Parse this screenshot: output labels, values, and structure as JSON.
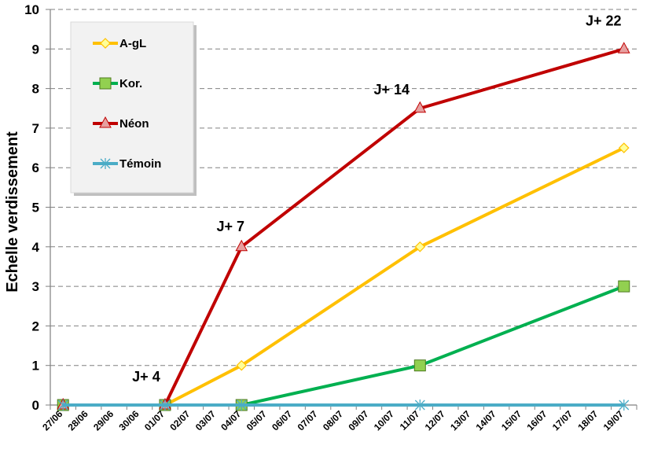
{
  "chart_data": {
    "type": "line",
    "ylabel": "Echelle verdissement",
    "xlabel": "",
    "ylim": [
      0,
      10
    ],
    "yticks": [
      "0",
      "1",
      "2",
      "3",
      "4",
      "5",
      "6",
      "7",
      "8",
      "9",
      "10"
    ],
    "grid": "horizontal dashed",
    "legend_position": "top-left",
    "categories": [
      "27/06",
      "28/06",
      "29/06",
      "30/06",
      "01/07",
      "02/07",
      "03/07",
      "04/07",
      "05/07",
      "06/07",
      "07/07",
      "08/07",
      "09/07",
      "10/07",
      "11/07",
      "12/07",
      "13/07",
      "14/07",
      "15/07",
      "16/07",
      "17/07",
      "18/07",
      "19/07"
    ],
    "series": [
      {
        "name": "A-gL",
        "color": "#FFC000",
        "marker": "diamond",
        "marker_fill": "#FFFF99",
        "points": [
          {
            "x": "27/06",
            "y": 0
          },
          {
            "x": "01/07",
            "y": 0
          },
          {
            "x": "04/07",
            "y": 1
          },
          {
            "x": "11/07",
            "y": 4
          },
          {
            "x": "19/07",
            "y": 6.5
          }
        ]
      },
      {
        "name": "Kor.",
        "color": "#00B050",
        "marker": "square",
        "marker_fill": "#92D050",
        "points": [
          {
            "x": "27/06",
            "y": 0
          },
          {
            "x": "01/07",
            "y": 0
          },
          {
            "x": "04/07",
            "y": 0
          },
          {
            "x": "11/07",
            "y": 1
          },
          {
            "x": "19/07",
            "y": 3
          }
        ]
      },
      {
        "name": "Néon",
        "color": "#C00000",
        "marker": "triangle",
        "marker_fill": "#E6A0A0",
        "points": [
          {
            "x": "27/06",
            "y": 0
          },
          {
            "x": "01/07",
            "y": 0
          },
          {
            "x": "04/07",
            "y": 4
          },
          {
            "x": "11/07",
            "y": 7.5
          },
          {
            "x": "19/07",
            "y": 9
          }
        ]
      },
      {
        "name": "Témoin",
        "color": "#4BACC6",
        "marker": "asterisk",
        "marker_fill": "#4BACC6",
        "points": [
          {
            "x": "27/06",
            "y": 0
          },
          {
            "x": "01/07",
            "y": 0
          },
          {
            "x": "04/07",
            "y": 0
          },
          {
            "x": "11/07",
            "y": 0
          },
          {
            "x": "19/07",
            "y": 0
          }
        ]
      }
    ],
    "annotations": [
      {
        "text": "J+ 4",
        "x": "01/07",
        "y": 0
      },
      {
        "text": "J+ 7",
        "x": "04/07",
        "y": 4
      },
      {
        "text": "J+ 14",
        "x": "11/07",
        "y": 7.5
      },
      {
        "text": "J+ 22",
        "x": "19/07",
        "y": 9
      }
    ]
  }
}
